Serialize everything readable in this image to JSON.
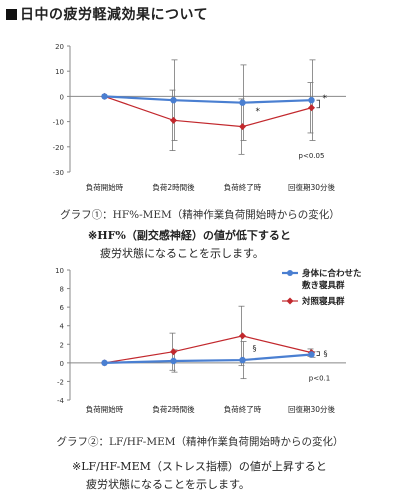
{
  "title": "日中の疲労軽減効果について",
  "chart_data": [
    {
      "type": "line",
      "categories": [
        "負荷開始時",
        "負荷2時間後",
        "負荷終了時",
        "回復期30分後"
      ],
      "ylim": [
        -30,
        20
      ],
      "yticks": [
        -30,
        -20,
        -10,
        0,
        10,
        20
      ],
      "grid": false,
      "series": [
        {
          "color": "#4a7fd1",
          "marker": "circle",
          "values": [
            0,
            -1.5,
            -2.5,
            -1.5
          ],
          "err": [
            0,
            16,
            15,
            16
          ]
        },
        {
          "color": "#c2282d",
          "marker": "diamond",
          "values": [
            0,
            -9.5,
            -12,
            -4.5
          ],
          "err": [
            0,
            12,
            11,
            10
          ]
        }
      ],
      "annotations": {
        "sig1": "*",
        "sig2": "*",
        "pval": "p<0.05"
      },
      "caption": "グラフ①：HF%-MEM（精神作業負荷開始時からの変化）",
      "note": [
        "※HF%（副交感神経）の値が低下すると",
        "疲労状態になることを示します。"
      ]
    },
    {
      "type": "line",
      "categories": [
        "負荷開始時",
        "負荷2時間後",
        "負荷終了時",
        "回復期30分後"
      ],
      "ylim": [
        -4,
        10
      ],
      "yticks": [
        -4,
        -2,
        0,
        2,
        4,
        6,
        8,
        10
      ],
      "grid": false,
      "series": [
        {
          "name": "身体に合わせた敷き寝具群",
          "name_lines": [
            "身体に合わせた",
            "敷き寝具群"
          ],
          "color": "#4a7fd1",
          "marker": "circle",
          "values": [
            0,
            0.2,
            0.3,
            0.9
          ],
          "err": [
            0,
            1.2,
            2.0,
            0.3
          ]
        },
        {
          "name": "対照寝具群",
          "color": "#c2282d",
          "marker": "diamond",
          "values": [
            0,
            1.2,
            2.9,
            1.1
          ],
          "err": [
            0,
            2.0,
            3.2,
            0.4
          ]
        }
      ],
      "legend": "top-right",
      "annotations": {
        "sig1": "§",
        "sig2": "§",
        "pval": "p<0.1"
      },
      "caption": "グラフ②：LF/HF-MEM（精神作業負荷開始時からの変化）",
      "note": [
        "※LF/HF-MEM（ストレス指標）の値が上昇すると",
        "疲労状態になることを示します。"
      ]
    }
  ]
}
